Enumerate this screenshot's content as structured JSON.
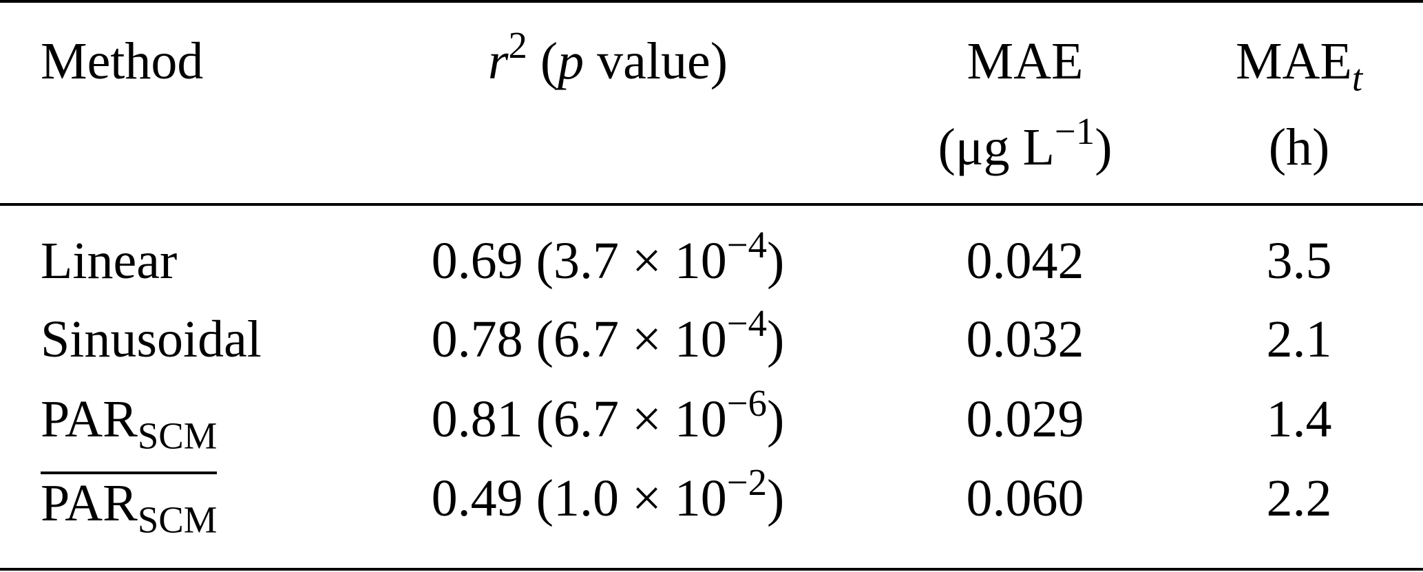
{
  "table": {
    "header": [
      [
        [
          {
            "t": "Method"
          }
        ]
      ],
      [
        [
          {
            "t": "r",
            "i": true
          },
          {
            "t": "2",
            "sup": true
          },
          {
            "t": " ("
          },
          {
            "t": "p",
            "i": true
          },
          {
            "t": " value)"
          }
        ]
      ],
      [
        [
          {
            "t": "MAE"
          }
        ],
        [
          {
            "t": "(μg L"
          },
          {
            "t": "−1",
            "sup": true
          },
          {
            "t": ")"
          }
        ]
      ],
      [
        [
          {
            "t": "MAE"
          },
          {
            "t": "t",
            "sub": true,
            "i": true
          }
        ],
        [
          {
            "t": "(h)"
          }
        ]
      ]
    ],
    "rows": [
      {
        "cells": [
          [
            [
              {
                "t": "Linear"
              }
            ]
          ],
          [
            [
              {
                "t": "0.69 (3.7 × 10"
              },
              {
                "t": "−4",
                "sup": true
              },
              {
                "t": ")"
              }
            ]
          ],
          [
            [
              {
                "t": "0.042"
              }
            ]
          ],
          [
            [
              {
                "t": "3.5"
              }
            ]
          ]
        ]
      },
      {
        "cells": [
          [
            [
              {
                "t": "Sinusoidal"
              }
            ]
          ],
          [
            [
              {
                "t": "0.78 (6.7 × 10"
              },
              {
                "t": "−4",
                "sup": true
              },
              {
                "t": ")"
              }
            ]
          ],
          [
            [
              {
                "t": "0.032"
              }
            ]
          ],
          [
            [
              {
                "t": "2.1"
              }
            ]
          ]
        ]
      },
      {
        "cells": [
          [
            [
              {
                "t": "PAR"
              },
              {
                "t": "SCM",
                "sub": true
              }
            ]
          ],
          [
            [
              {
                "t": "0.81 (6.7 × 10"
              },
              {
                "t": "−6",
                "sup": true
              },
              {
                "t": ")"
              }
            ]
          ],
          [
            [
              {
                "t": "0.029"
              }
            ]
          ],
          [
            [
              {
                "t": "1.4"
              }
            ]
          ]
        ]
      },
      {
        "overline": true,
        "cells": [
          [
            [
              {
                "t": "PAR"
              },
              {
                "t": "SCM",
                "sub": true
              }
            ]
          ],
          [
            [
              {
                "t": "0.49 (1.0 × 10"
              },
              {
                "t": "−2",
                "sup": true
              },
              {
                "t": ")"
              }
            ]
          ],
          [
            [
              {
                "t": "0.060"
              }
            ]
          ],
          [
            [
              {
                "t": "2.2"
              }
            ]
          ]
        ]
      }
    ]
  }
}
